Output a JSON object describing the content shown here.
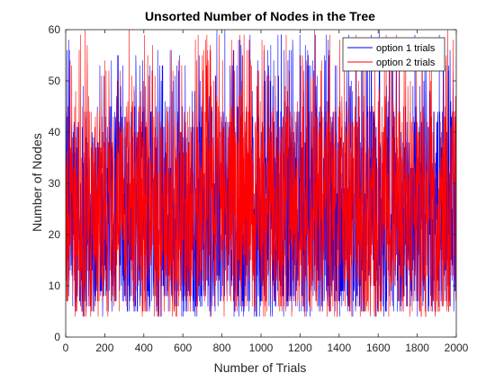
{
  "chart_data": {
    "type": "line",
    "title": "Unsorted Number of Nodes in the Tree",
    "xlabel": "Number of Trials",
    "ylabel": "Number of Nodes",
    "xlim": [
      0,
      2000
    ],
    "ylim": [
      0,
      60
    ],
    "xticks": [
      0,
      200,
      400,
      600,
      800,
      1000,
      1200,
      1400,
      1600,
      1800,
      2000
    ],
    "yticks": [
      0,
      10,
      20,
      30,
      40,
      50,
      60
    ],
    "grid": false,
    "legend_position": "top-right",
    "series": [
      {
        "name": "option 1 trials",
        "color": "#0000ff",
        "sampling": "2000 noisy trials; values range 4 to 60, dense band 4 to 52",
        "min": 4,
        "max": 60,
        "typical_range": [
          10,
          35
        ]
      },
      {
        "name": "option 2 trials",
        "color": "#ff0000",
        "sampling": "2000 noisy trials drawn over option 1; values range 4 to 60, dense band 8 to 45",
        "min": 4,
        "max": 60,
        "typical_range": [
          12,
          35
        ]
      }
    ]
  }
}
